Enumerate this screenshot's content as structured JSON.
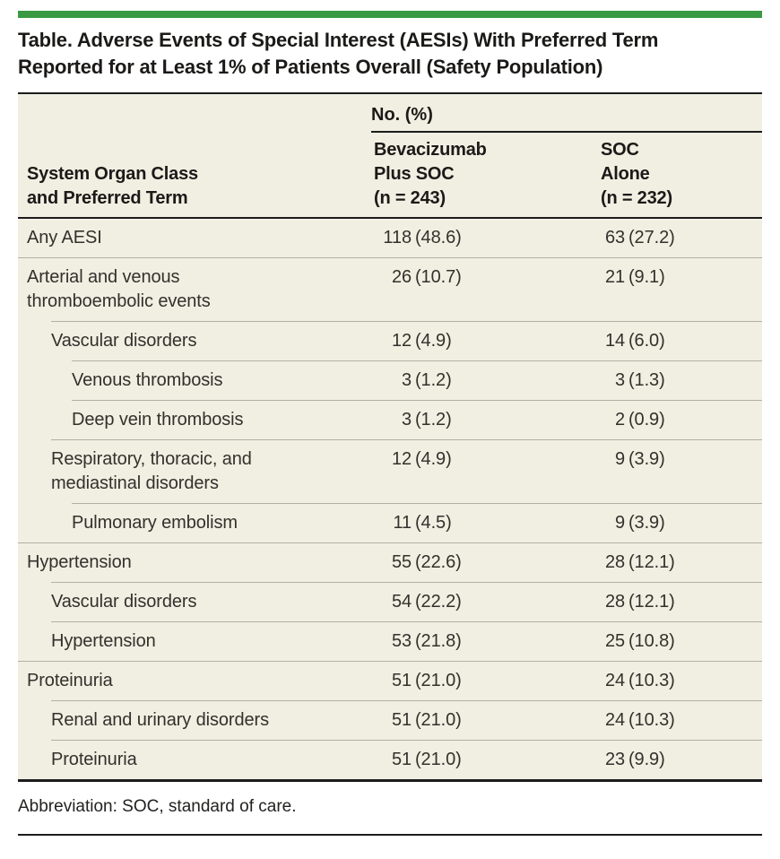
{
  "colors": {
    "accent_green": "#3a9a43",
    "panel_bg": "#f0efe2",
    "rule_black": "#1c1c1c",
    "separator_gray": "#b2b1a4",
    "text_dark": "#1b1a18",
    "text_body": "#32312c"
  },
  "title": "Table. Adverse Events of Special Interest (AESIs) With Preferred Term\nReported for at Least 1% of Patients Overall (Safety Population)",
  "header": {
    "group_label": "No. (%)",
    "col_stub": "System Organ Class\nand Preferred Term",
    "col_bev": "Bevacizumab\nPlus SOC\n(n = 243)",
    "col_soc": "SOC\nAlone\n(n = 232)"
  },
  "rows": [
    {
      "label": "Any AESI",
      "level": 0,
      "bev_count": "118",
      "bev_pct": "(48.6)",
      "soc_count": "63",
      "soc_pct": "(27.2)"
    },
    {
      "label": "Arterial and venous\nthromboembolic events",
      "level": 0,
      "bev_count": "26",
      "bev_pct": "(10.7)",
      "soc_count": "21",
      "soc_pct": "(9.1)"
    },
    {
      "label": "Vascular disorders",
      "level": 1,
      "bev_count": "12",
      "bev_pct": "(4.9)",
      "soc_count": "14",
      "soc_pct": "(6.0)"
    },
    {
      "label": "Venous thrombosis",
      "level": 2,
      "bev_count": "3",
      "bev_pct": "(1.2)",
      "soc_count": "3",
      "soc_pct": "(1.3)"
    },
    {
      "label": "Deep vein thrombosis",
      "level": 2,
      "bev_count": "3",
      "bev_pct": "(1.2)",
      "soc_count": "2",
      "soc_pct": "(0.9)"
    },
    {
      "label": "Respiratory, thoracic, and\nmediastinal disorders",
      "level": 1,
      "bev_count": "12",
      "bev_pct": "(4.9)",
      "soc_count": "9",
      "soc_pct": "(3.9)"
    },
    {
      "label": "Pulmonary embolism",
      "level": 2,
      "bev_count": "11",
      "bev_pct": "(4.5)",
      "soc_count": "9",
      "soc_pct": "(3.9)"
    },
    {
      "label": "Hypertension",
      "level": 0,
      "bev_count": "55",
      "bev_pct": "(22.6)",
      "soc_count": "28",
      "soc_pct": "(12.1)"
    },
    {
      "label": "Vascular disorders",
      "level": 1,
      "bev_count": "54",
      "bev_pct": "(22.2)",
      "soc_count": "28",
      "soc_pct": "(12.1)"
    },
    {
      "label": "Hypertension",
      "level": 1,
      "bev_count": "53",
      "bev_pct": "(21.8)",
      "soc_count": "25",
      "soc_pct": "(10.8)"
    },
    {
      "label": "Proteinuria",
      "level": 0,
      "bev_count": "51",
      "bev_pct": "(21.0)",
      "soc_count": "24",
      "soc_pct": "(10.3)"
    },
    {
      "label": "Renal and urinary disorders",
      "level": 1,
      "bev_count": "51",
      "bev_pct": "(21.0)",
      "soc_count": "24",
      "soc_pct": "(10.3)"
    },
    {
      "label": "Proteinuria",
      "level": 1,
      "bev_count": "51",
      "bev_pct": "(21.0)",
      "soc_count": "23",
      "soc_pct": "(9.9)"
    }
  ],
  "footnote": "Abbreviation: SOC, standard of care."
}
